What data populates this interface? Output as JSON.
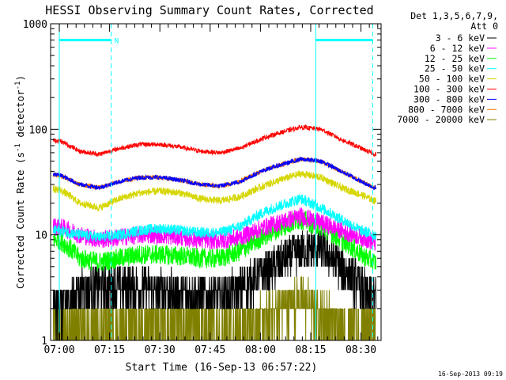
{
  "chart_data": {
    "type": "line",
    "title": "HESSI Observing Summary Count Rates, Corrected",
    "xlabel": "Start Time (16-Sep-13 06:57:22)",
    "ylabel": "Corrected Count Rate (s^-1 detector^-1)",
    "ylabel_parts": {
      "main": "Corrected Count Rate (s",
      "sup1": "-1",
      "mid": " detector",
      "sup2": "-1",
      "end": ")"
    },
    "x_tick_labels": [
      "07:00",
      "07:15",
      "07:30",
      "07:45",
      "08:00",
      "08:15",
      "08:30"
    ],
    "x_tick_minutes": [
      0,
      15,
      30,
      45,
      60,
      75,
      90
    ],
    "x_range_minutes": [
      -2.6,
      96
    ],
    "y_scale": "log",
    "y_tick_labels": [
      "1",
      "10",
      "100",
      "1000"
    ],
    "y_ticks": [
      1,
      10,
      100,
      1000
    ],
    "ylim": [
      1,
      1000
    ],
    "legend_placement": "right",
    "legend_header": [
      "Det 1,3,5,6,7,9,",
      "Att 0"
    ],
    "series": [
      {
        "name": "3 - 6 keV",
        "color": "#000000",
        "key": [
          2.0,
          3.0,
          3.3,
          3.4,
          3.2,
          3.0,
          2.8,
          2.7,
          2.7,
          3.0,
          4.5,
          7.0,
          7.5,
          5.0,
          3.2,
          2.5
        ],
        "noise": 0.45,
        "quant": true
      },
      {
        "name": "6 - 12 keV",
        "color": "#ff00ff",
        "key": [
          12.0,
          10.0,
          9.0,
          9.5,
          10.0,
          10.0,
          9.5,
          9.0,
          8.8,
          9.5,
          12.0,
          15.0,
          13.0,
          11.0,
          9.5,
          8.5
        ],
        "noise": 0.2
      },
      {
        "name": "12 - 25 keV",
        "color": "#00ff00",
        "key": [
          9.0,
          6.0,
          5.5,
          6.0,
          6.5,
          6.5,
          6.3,
          6.0,
          6.0,
          7.0,
          10.0,
          14.0,
          12.0,
          9.0,
          6.5,
          5.5
        ],
        "noise": 0.22
      },
      {
        "name": "25 - 50 keV",
        "color": "#00ffff",
        "key": [
          11.0,
          10.0,
          9.5,
          10.0,
          11.0,
          11.5,
          11.0,
          10.5,
          10.5,
          12.0,
          17.0,
          22.0,
          18.0,
          14.0,
          11.0,
          10.0
        ],
        "noise": 0.12
      },
      {
        "name": "50 - 100 keV",
        "color": "#ffff00",
        "key": [
          27.0,
          20.0,
          18.0,
          22.0,
          25.0,
          26.0,
          25.0,
          22.0,
          21.0,
          23.0,
          30.0,
          38.0,
          35.0,
          28.0,
          24.0,
          21.0
        ],
        "noise": 0.08
      },
      {
        "name": "100 - 300 keV",
        "color": "#ff0000",
        "key": [
          78.0,
          62.0,
          58.0,
          66.0,
          72.0,
          72.0,
          68.0,
          62.0,
          60.0,
          66.0,
          85.0,
          105.0,
          100.0,
          80.0,
          66.0,
          58.0
        ],
        "noise": 0.05
      },
      {
        "name": "300 - 800 keV",
        "color": "#ff9900",
        "key": [
          37.0,
          30.0,
          28.0,
          32.0,
          35.0,
          35.0,
          33.0,
          30.0,
          29.0,
          32.0,
          42.0,
          52.0,
          50.0,
          40.0,
          32.0,
          28.0
        ],
        "noise": 0.05
      },
      {
        "name": "800 - 7000 keV",
        "color": "#ff8800",
        "key": [
          37.0,
          30.0,
          28.0,
          32.0,
          35.0,
          35.0,
          33.0,
          30.0,
          29.0,
          32.0,
          42.0,
          52.0,
          50.0,
          40.0,
          32.0,
          28.0
        ],
        "noise": 0.05
      },
      {
        "name": "7000 - 20000 keV",
        "color": "#808000",
        "key": [
          1.3,
          1.3,
          1.3,
          1.3,
          1.4,
          1.5,
          1.5,
          1.4,
          1.3,
          1.4,
          1.6,
          2.5,
          1.8,
          1.4,
          1.3,
          1.3
        ],
        "noise": 0.5,
        "quant": true
      }
    ],
    "series_display_colors": [
      "#000000",
      "#ff00ff",
      "#00ff00",
      "#00ffff",
      "#d6d600",
      "#ff0000",
      "#0000ff",
      "#ff7700",
      "#808000"
    ],
    "key_minutes": [
      0,
      6,
      12,
      18,
      24,
      30,
      36,
      42,
      48,
      54,
      62,
      72,
      78,
      84,
      90,
      94
    ],
    "saa_night_markers": {
      "color": "#00ffff",
      "solid_minutes": [
        0,
        76.5
      ],
      "dashed_minutes": [
        15.5,
        93.5
      ],
      "bars": [
        {
          "from": 0,
          "to": 15.5,
          "label": "N"
        },
        {
          "from": 76.5,
          "to": 93.5,
          "label": ""
        }
      ],
      "bar_value": 700
    },
    "grid": false
  },
  "footer_timestamp": "16-Sep-2013 09:19"
}
